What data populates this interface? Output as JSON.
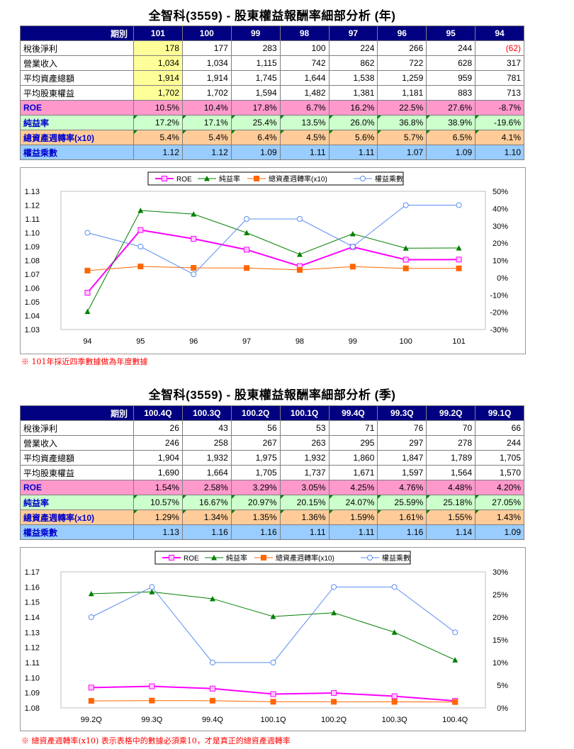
{
  "annual": {
    "title": "全智科(3559) -  股東權益報酬率細部分析 (年)",
    "header_label": "期別",
    "periods": [
      "101",
      "100",
      "99",
      "98",
      "97",
      "96",
      "95",
      "94"
    ],
    "rows": {
      "net_income": {
        "label": "稅後淨利",
        "values": [
          "178",
          "177",
          "283",
          "100",
          "224",
          "266",
          "244",
          "(62)"
        ]
      },
      "revenue": {
        "label": "營業收入",
        "values": [
          "1,034",
          "1,034",
          "1,115",
          "742",
          "862",
          "722",
          "628",
          "317"
        ]
      },
      "avg_assets": {
        "label": "平均資產總額",
        "values": [
          "1,914",
          "1,914",
          "1,745",
          "1,644",
          "1,538",
          "1,259",
          "959",
          "781"
        ]
      },
      "avg_equity": {
        "label": "平均股東權益",
        "values": [
          "1,702",
          "1,702",
          "1,594",
          "1,482",
          "1,381",
          "1,181",
          "883",
          "713"
        ]
      },
      "roe": {
        "label": "ROE",
        "values": [
          "10.5%",
          "10.4%",
          "17.8%",
          "6.7%",
          "16.2%",
          "22.5%",
          "27.6%",
          "-8.7%"
        ]
      },
      "npm": {
        "label": "純益率",
        "values": [
          "17.2%",
          "17.1%",
          "25.4%",
          "13.5%",
          "26.0%",
          "36.8%",
          "38.9%",
          "-19.6%"
        ]
      },
      "turnover": {
        "label": "總資產週轉率(x10)",
        "values": [
          "5.4%",
          "5.4%",
          "6.4%",
          "4.5%",
          "5.6%",
          "5.7%",
          "6.5%",
          "4.1%"
        ]
      },
      "multiplier": {
        "label": "權益乘數",
        "values": [
          "1.12",
          "1.12",
          "1.09",
          "1.11",
          "1.11",
          "1.07",
          "1.09",
          "1.10"
        ]
      }
    },
    "note": "※ 101年採近四季數據做為年度數據"
  },
  "quarterly": {
    "title": "全智科(3559) -  股東權益報酬率細部分析 (季)",
    "header_label": "期別",
    "periods": [
      "100.4Q",
      "100.3Q",
      "100.2Q",
      "100.1Q",
      "99.4Q",
      "99.3Q",
      "99.2Q",
      "99.1Q"
    ],
    "rows": {
      "net_income": {
        "label": "稅後淨利",
        "values": [
          "26",
          "43",
          "56",
          "53",
          "71",
          "76",
          "70",
          "66"
        ]
      },
      "revenue": {
        "label": "營業收入",
        "values": [
          "246",
          "258",
          "267",
          "263",
          "295",
          "297",
          "278",
          "244"
        ]
      },
      "avg_assets": {
        "label": "平均資產總額",
        "values": [
          "1,904",
          "1,932",
          "1,975",
          "1,932",
          "1,860",
          "1,847",
          "1,789",
          "1,705"
        ]
      },
      "avg_equity": {
        "label": "平均股東權益",
        "values": [
          "1,690",
          "1,664",
          "1,705",
          "1,737",
          "1,671",
          "1,597",
          "1,564",
          "1,570"
        ]
      },
      "roe": {
        "label": "ROE",
        "values": [
          "1.54%",
          "2.58%",
          "3.29%",
          "3.05%",
          "4.25%",
          "4.76%",
          "4.48%",
          "4.20%"
        ]
      },
      "npm": {
        "label": "純益率",
        "values": [
          "10.57%",
          "16.67%",
          "20.97%",
          "20.15%",
          "24.07%",
          "25.59%",
          "25.18%",
          "27.05%"
        ]
      },
      "turnover": {
        "label": "總資產週轉率(x10)",
        "values": [
          "1.29%",
          "1.34%",
          "1.35%",
          "1.36%",
          "1.59%",
          "1.61%",
          "1.55%",
          "1.43%"
        ]
      },
      "multiplier": {
        "label": "權益乘數",
        "values": [
          "1.13",
          "1.16",
          "1.16",
          "1.11",
          "1.11",
          "1.16",
          "1.14",
          "1.09"
        ]
      }
    },
    "note": "※ 總資產週轉率(x10) 表示表格中的數據必須乘10，才是真正的總資產週轉率"
  },
  "chart_data": [
    {
      "type": "line",
      "categories": [
        "94",
        "95",
        "96",
        "97",
        "98",
        "99",
        "100",
        "101"
      ],
      "series": [
        {
          "name": "ROE",
          "axis": "right",
          "color": "#ff00ff",
          "marker": "square",
          "values": [
            -8.7,
            27.6,
            22.5,
            16.2,
            6.7,
            17.8,
            10.4,
            10.5
          ]
        },
        {
          "name": "純益率",
          "axis": "right",
          "color": "#008000",
          "marker": "triangle",
          "values": [
            -19.6,
            38.9,
            36.8,
            26.0,
            13.5,
            25.4,
            17.1,
            17.2
          ]
        },
        {
          "name": "總資產週轉率(x10)",
          "axis": "right",
          "color": "#ff6600",
          "marker": "square",
          "values": [
            4.1,
            6.5,
            5.7,
            5.6,
            4.5,
            6.4,
            5.4,
            5.4
          ]
        },
        {
          "name": "權益乘數",
          "axis": "left",
          "color": "#5b8def",
          "marker": "circle",
          "values": [
            1.1,
            1.09,
            1.07,
            1.11,
            1.11,
            1.09,
            1.12,
            1.12
          ]
        }
      ],
      "y_left": {
        "range": [
          1.03,
          1.13
        ],
        "ticks": [
          "1.03",
          "1.04",
          "1.05",
          "1.06",
          "1.07",
          "1.08",
          "1.09",
          "1.10",
          "1.11",
          "1.12",
          "1.13"
        ]
      },
      "y_right": {
        "range": [
          -30,
          50
        ],
        "ticks": [
          "-30%",
          "-20%",
          "-10%",
          "0%",
          "10%",
          "20%",
          "30%",
          "40%",
          "50%"
        ]
      },
      "legend": "top"
    },
    {
      "type": "line",
      "categories": [
        "99.2Q",
        "99.3Q",
        "99.4Q",
        "100.1Q",
        "100.2Q",
        "100.3Q",
        "100.4Q"
      ],
      "series": [
        {
          "name": "ROE",
          "axis": "right",
          "color": "#ff00ff",
          "marker": "square",
          "values": [
            4.48,
            4.76,
            4.25,
            3.05,
            3.29,
            2.58,
            1.54
          ]
        },
        {
          "name": "純益率",
          "axis": "right",
          "color": "#008000",
          "marker": "triangle",
          "values": [
            25.18,
            25.59,
            24.07,
            20.15,
            20.97,
            16.67,
            10.57
          ]
        },
        {
          "name": "總資產週轉率(x10)",
          "axis": "right",
          "color": "#ff6600",
          "marker": "square",
          "values": [
            1.55,
            1.61,
            1.59,
            1.36,
            1.35,
            1.34,
            1.29
          ]
        },
        {
          "name": "權益乘數",
          "axis": "left",
          "color": "#5b8def",
          "marker": "circle",
          "values": [
            1.14,
            1.16,
            1.11,
            1.11,
            1.16,
            1.16,
            1.13
          ]
        }
      ],
      "y_left": {
        "range": [
          1.08,
          1.17
        ],
        "ticks": [
          "1.08",
          "1.09",
          "1.10",
          "1.11",
          "1.12",
          "1.13",
          "1.14",
          "1.15",
          "1.16",
          "1.17"
        ]
      },
      "y_right": {
        "range": [
          0,
          30
        ],
        "ticks": [
          "0%",
          "5%",
          "10%",
          "15%",
          "20%",
          "25%",
          "30%"
        ]
      },
      "legend": "top"
    }
  ]
}
